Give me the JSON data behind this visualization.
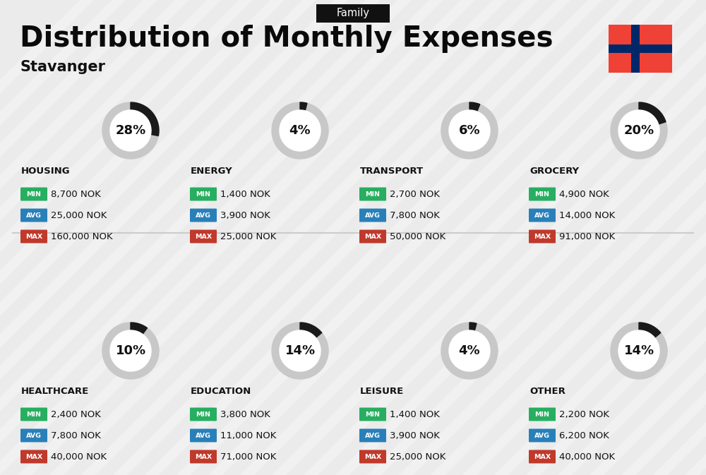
{
  "title": "Distribution of Monthly Expenses",
  "subtitle": "Stavanger",
  "category_label": "Family",
  "bg_color": "#ebebeb",
  "categories": [
    {
      "name": "HOUSING",
      "pct": 28,
      "min": "8,700 NOK",
      "avg": "25,000 NOK",
      "max": "160,000 NOK",
      "row": 0,
      "col": 0
    },
    {
      "name": "ENERGY",
      "pct": 4,
      "min": "1,400 NOK",
      "avg": "3,900 NOK",
      "max": "25,000 NOK",
      "row": 0,
      "col": 1
    },
    {
      "name": "TRANSPORT",
      "pct": 6,
      "min": "2,700 NOK",
      "avg": "7,800 NOK",
      "max": "50,000 NOK",
      "row": 0,
      "col": 2
    },
    {
      "name": "GROCERY",
      "pct": 20,
      "min": "4,900 NOK",
      "avg": "14,000 NOK",
      "max": "91,000 NOK",
      "row": 0,
      "col": 3
    },
    {
      "name": "HEALTHCARE",
      "pct": 10,
      "min": "2,400 NOK",
      "avg": "7,800 NOK",
      "max": "40,000 NOK",
      "row": 1,
      "col": 0
    },
    {
      "name": "EDUCATION",
      "pct": 14,
      "min": "3,800 NOK",
      "avg": "11,000 NOK",
      "max": "71,000 NOK",
      "row": 1,
      "col": 1
    },
    {
      "name": "LEISURE",
      "pct": 4,
      "min": "1,400 NOK",
      "avg": "3,900 NOK",
      "max": "25,000 NOK",
      "row": 1,
      "col": 2
    },
    {
      "name": "OTHER",
      "pct": 14,
      "min": "2,200 NOK",
      "avg": "6,200 NOK",
      "max": "40,000 NOK",
      "row": 1,
      "col": 3
    }
  ],
  "min_color": "#27ae60",
  "avg_color": "#2980b9",
  "max_color": "#c0392b",
  "norway_red": "#EF4135",
  "norway_blue": "#002868",
  "stripe_color": "#ffffff",
  "divider_color": "#cccccc"
}
